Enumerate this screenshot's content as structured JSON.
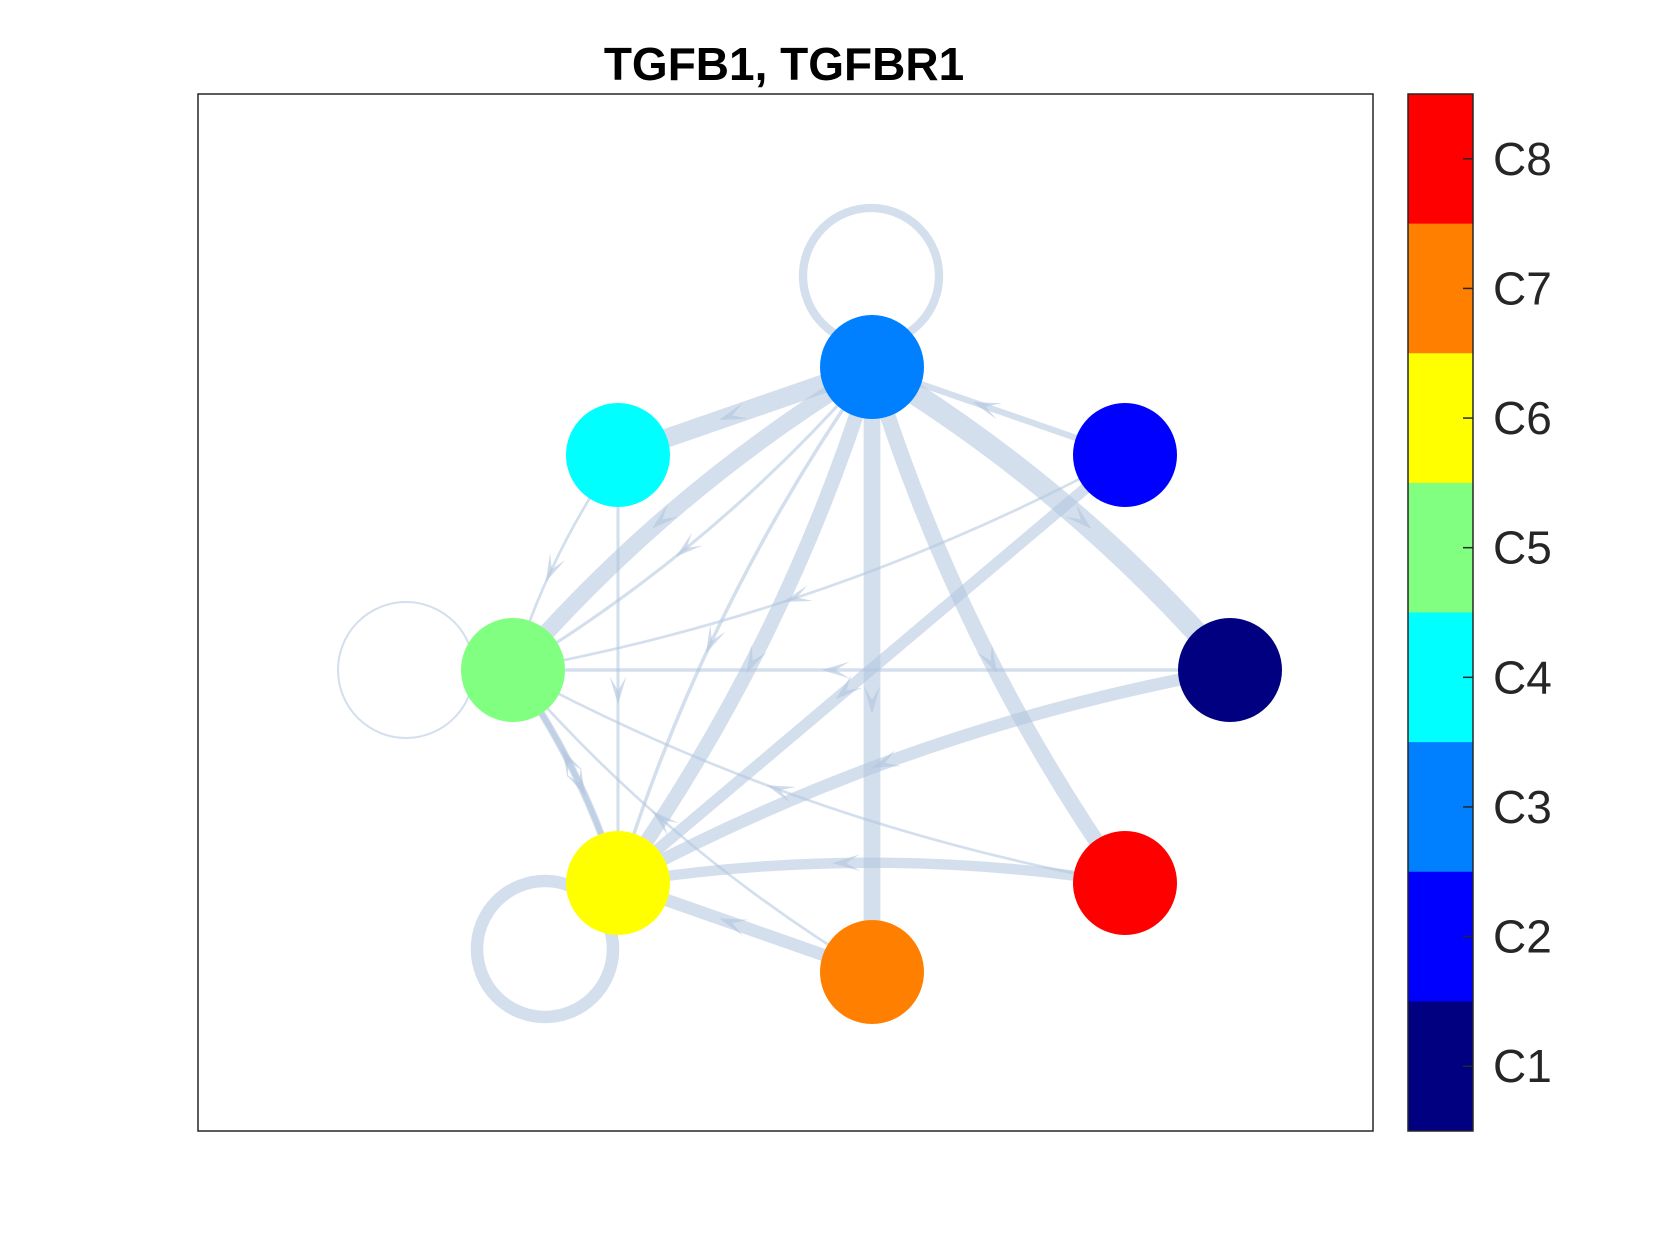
{
  "title": "TGFB1, TGFBR1",
  "edge_color": "#b0c4de",
  "nodes": [
    {
      "id": "C1",
      "color": "#000080"
    },
    {
      "id": "C2",
      "color": "#0000ff"
    },
    {
      "id": "C3",
      "color": "#0080ff"
    },
    {
      "id": "C4",
      "color": "#00ffff"
    },
    {
      "id": "C5",
      "color": "#80ff80"
    },
    {
      "id": "C6",
      "color": "#ffff00"
    },
    {
      "id": "C7",
      "color": "#ff8000"
    },
    {
      "id": "C8",
      "color": "#ff0000"
    }
  ],
  "edges": [
    {
      "from": "C3",
      "to": "C3",
      "weight": 0.35
    },
    {
      "from": "C5",
      "to": "C5",
      "weight": 0.05
    },
    {
      "from": "C6",
      "to": "C6",
      "weight": 0.55
    },
    {
      "from": "C3",
      "to": "C4",
      "weight": 0.85
    },
    {
      "from": "C3",
      "to": "C5",
      "weight": 0.75
    },
    {
      "from": "C3",
      "to": "C6",
      "weight": 0.65
    },
    {
      "from": "C3",
      "to": "C7",
      "weight": 0.75
    },
    {
      "from": "C3",
      "to": "C1",
      "weight": 1.0
    },
    {
      "from": "C3",
      "to": "C8",
      "weight": 0.7
    },
    {
      "from": "C2",
      "to": "C3",
      "weight": 0.25
    },
    {
      "from": "C3",
      "to": "C6",
      "weight": 0.12
    },
    {
      "from": "C3",
      "to": "C5",
      "weight": 0.1
    },
    {
      "from": "C2",
      "to": "C6",
      "weight": 0.5
    },
    {
      "from": "C2",
      "to": "C5",
      "weight": 0.08
    },
    {
      "from": "C1",
      "to": "C6",
      "weight": 0.55
    },
    {
      "from": "C1",
      "to": "C5",
      "weight": 0.12
    },
    {
      "from": "C8",
      "to": "C6",
      "weight": 0.45
    },
    {
      "from": "C8",
      "to": "C5",
      "weight": 0.08
    },
    {
      "from": "C7",
      "to": "C6",
      "weight": 0.55
    },
    {
      "from": "C7",
      "to": "C5",
      "weight": 0.08
    },
    {
      "from": "C4",
      "to": "C5",
      "weight": 0.08
    },
    {
      "from": "C4",
      "to": "C6",
      "weight": 0.1
    },
    {
      "from": "C6",
      "to": "C5",
      "weight": 0.3
    },
    {
      "from": "C5",
      "to": "C6",
      "weight": 0.2
    }
  ],
  "colorbar": {
    "labels": [
      "C8",
      "C7",
      "C6",
      "C5",
      "C4",
      "C3",
      "C2",
      "C1"
    ],
    "colors": [
      "#ff0000",
      "#ff8000",
      "#ffff00",
      "#80ff80",
      "#00ffff",
      "#0080ff",
      "#0000ff",
      "#000080"
    ]
  }
}
